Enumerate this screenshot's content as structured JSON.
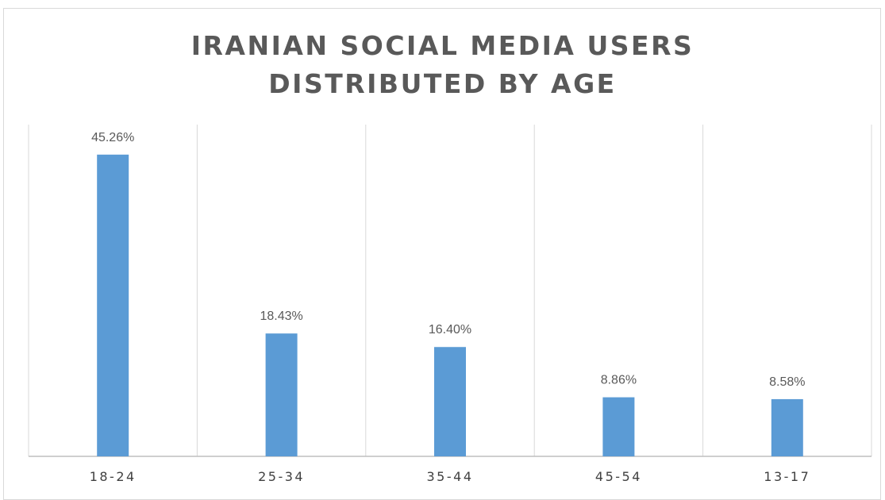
{
  "chart_data": {
    "type": "bar",
    "title": "IRANIAN SOCIAL MEDIA USERS DISTRIBUTED BY AGE",
    "title_lines": [
      "IRANIAN SOCIAL MEDIA USERS",
      "DISTRIBUTED BY AGE"
    ],
    "categories": [
      "18-24",
      "25-34",
      "35-44",
      "45-54",
      "13-17"
    ],
    "values": [
      45.26,
      18.43,
      16.4,
      8.86,
      8.58
    ],
    "data_labels": [
      "45.26%",
      "18.43%",
      "16.40%",
      "8.86%",
      "8.58%"
    ],
    "xlabel": "",
    "ylabel": "",
    "ylim": [
      0,
      50
    ],
    "grid": "vertical",
    "legend": "none",
    "colors": {
      "bar": "#5b9bd5",
      "gridline": "#d9d9d9",
      "axis": "#bfbfbf",
      "title": "#595959"
    }
  }
}
